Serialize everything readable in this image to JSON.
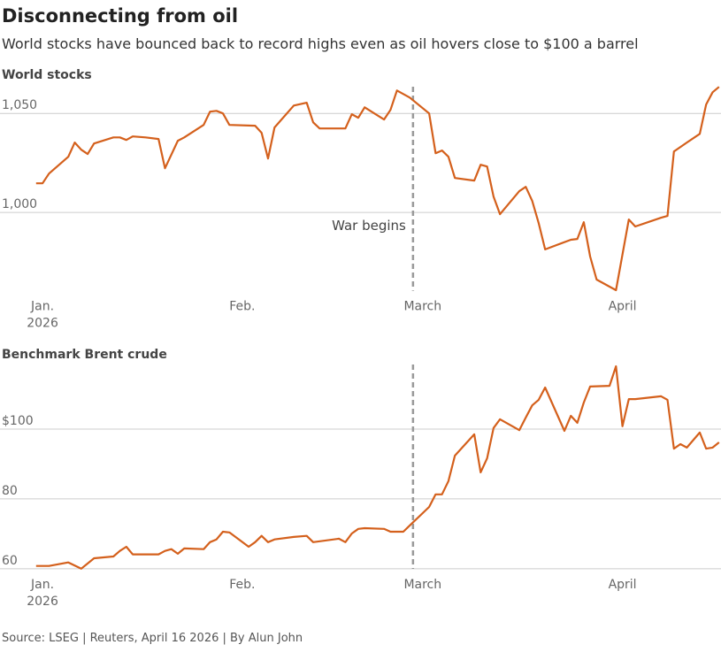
{
  "header": {
    "title": "Disconnecting from oil",
    "subtitle": "World stocks have bounced back to record highs even as oil hovers close to $100 a barrel"
  },
  "footer": {
    "source": "Source: LSEG | Reuters, April 16 2026 | By Alun John"
  },
  "chart_data": [
    {
      "type": "line",
      "title": "World stocks",
      "x": [
        0,
        1,
        2,
        5,
        6,
        7,
        8,
        9,
        12,
        13,
        14,
        15,
        17,
        19,
        20,
        22,
        23,
        26,
        27,
        28,
        29,
        30,
        34,
        35,
        36,
        37,
        40,
        42,
        43,
        44,
        48,
        49,
        50,
        51,
        54,
        55,
        56,
        58,
        61,
        62,
        63,
        64,
        65,
        68,
        69,
        70,
        71,
        72,
        75,
        76,
        77,
        78,
        79,
        83,
        84,
        85,
        86,
        87,
        90,
        92,
        93,
        97,
        98,
        99,
        101,
        103,
        104,
        105,
        106
      ],
      "series": [
        {
          "color": "#d4601c",
          "values": [
            1014.7,
            1014.7,
            1019.6,
            1028.1,
            1035.3,
            1031.7,
            1029.5,
            1034.8,
            1037.9,
            1037.9,
            1036.6,
            1038.4,
            1037.9,
            1037.1,
            1022.3,
            1036.2,
            1037.9,
            1044.2,
            1050.9,
            1051.3,
            1050.0,
            1044.2,
            1043.8,
            1040.2,
            1027.2,
            1042.9,
            1054.0,
            1055.4,
            1045.5,
            1042.4,
            1042.4,
            1049.6,
            1047.8,
            1053.1,
            1046.9,
            1051.8,
            1061.6,
            1058.0,
            1050.0,
            1029.9,
            1031.3,
            1028.1,
            1017.4,
            1016.1,
            1024.1,
            1023.2,
            1008.0,
            999.1,
            1010.7,
            1012.9,
            1005.8,
            994.6,
            981.3,
            986.2,
            986.6,
            995.1,
            977.7,
            966.1,
            960.7,
            996.4,
            992.9,
            997.3,
            998.2,
            1030.8,
            1035.3,
            1039.7,
            1054.5,
            1060.7,
            1063.4
          ]
        }
      ],
      "xlim": [
        -5.6,
        106.3
      ],
      "xticks": [
        {
          "value": 1,
          "label": "Jan."
        },
        {
          "value": 32,
          "label": "Feb."
        },
        {
          "value": 60,
          "label": "March"
        },
        {
          "value": 91,
          "label": "April"
        }
      ],
      "year_label": "2026",
      "ylim": [
        960,
        1063.5
      ],
      "yticks": [
        {
          "value": 1000,
          "label": "1,000"
        },
        {
          "value": 1050,
          "label": "1,050"
        }
      ],
      "grid": true,
      "annotation": {
        "x": 58.5,
        "label": "War begins"
      }
    },
    {
      "type": "line",
      "title": "Benchmark Brent crude",
      "x": [
        0,
        2,
        5,
        7,
        8,
        9,
        12,
        13,
        14,
        15,
        17,
        19,
        20,
        21,
        22,
        23,
        26,
        27,
        28,
        29,
        30,
        33,
        34,
        35,
        36,
        37,
        40,
        42,
        43,
        47,
        48,
        49,
        50,
        51,
        54,
        55,
        57,
        58,
        61,
        62,
        63,
        64,
        65,
        68,
        69,
        70,
        71,
        72,
        75,
        76,
        77,
        78,
        79,
        82,
        83,
        84,
        85,
        86,
        89,
        90,
        91,
        92,
        93,
        97,
        98,
        99,
        100,
        101,
        103,
        104,
        105,
        106
      ],
      "series": [
        {
          "color": "#d4601c",
          "values": [
            60.8,
            60.8,
            61.8,
            60.0,
            61.5,
            63.0,
            63.5,
            65.1,
            66.3,
            64.1,
            64.1,
            64.1,
            65.1,
            65.6,
            64.3,
            65.8,
            65.6,
            67.6,
            68.4,
            70.6,
            70.4,
            66.3,
            67.6,
            69.4,
            67.6,
            68.4,
            69.1,
            69.4,
            67.6,
            68.6,
            67.6,
            70.1,
            71.4,
            71.6,
            71.4,
            70.6,
            70.6,
            72.4,
            77.7,
            81.3,
            81.3,
            85.1,
            92.4,
            98.5,
            87.6,
            91.6,
            100.3,
            102.8,
            99.7,
            103.3,
            106.8,
            108.4,
            111.9,
            99.5,
            103.8,
            101.8,
            107.6,
            112.2,
            112.4,
            118.0,
            100.8,
            108.6,
            108.6,
            109.4,
            108.4,
            94.4,
            95.7,
            94.7,
            99.0,
            94.4,
            94.7,
            96.2
          ]
        }
      ],
      "xlim": [
        -5.6,
        106.3
      ],
      "xticks": [
        {
          "value": 1,
          "label": "Jan."
        },
        {
          "value": 32,
          "label": "Feb."
        },
        {
          "value": 60,
          "label": "March"
        },
        {
          "value": 91,
          "label": "April"
        }
      ],
      "year_label": "2026",
      "ylim": [
        59.7,
        118.5
      ],
      "yticks": [
        60,
        80,
        {
          "value": 100,
          "label": "$100"
        }
      ],
      "grid": true,
      "annotation": {
        "x": 58.5
      }
    }
  ]
}
